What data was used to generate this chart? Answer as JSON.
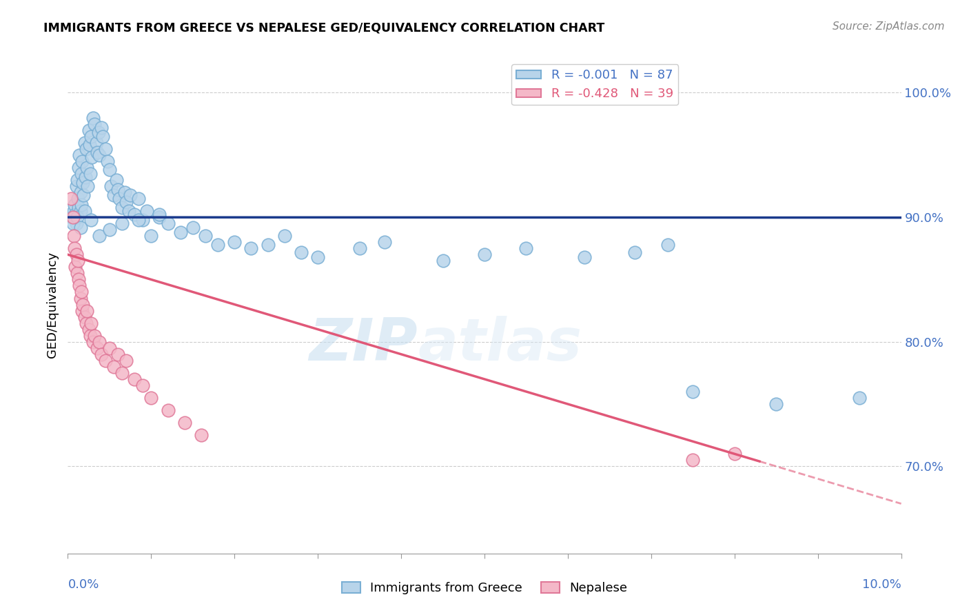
{
  "title": "IMMIGRANTS FROM GREECE VS NEPALESE GED/EQUIVALENCY CORRELATION CHART",
  "source": "Source: ZipAtlas.com",
  "ylabel": "GED/Equivalency",
  "xmin": 0.0,
  "xmax": 10.0,
  "ymin": 63.0,
  "ymax": 103.0,
  "right_yticks": [
    70.0,
    80.0,
    90.0,
    100.0
  ],
  "right_ytick_labels": [
    "70.0%",
    "80.0%",
    "90.0%",
    "100.0%"
  ],
  "blue_R": -0.001,
  "blue_N": 87,
  "pink_R": -0.428,
  "pink_N": 39,
  "blue_line_y_intercept": 90.0,
  "blue_line_slope": -0.003,
  "pink_line_y_intercept": 87.0,
  "pink_line_slope": -2.0,
  "pink_line_solid_end": 8.3,
  "blue_color": "#b8d4ea",
  "blue_edge": "#7aafd4",
  "pink_color": "#f4b8c8",
  "pink_edge": "#e07898",
  "blue_line_color": "#1a3a8c",
  "pink_line_color": "#e05878",
  "watermark_zip": "ZIP",
  "watermark_atlas": "atlas",
  "legend_blue_label": "R = -0.001   N = 87",
  "legend_pink_label": "R = -0.428   N = 39",
  "blue_x": [
    0.05,
    0.07,
    0.08,
    0.09,
    0.1,
    0.1,
    0.11,
    0.12,
    0.13,
    0.13,
    0.14,
    0.15,
    0.15,
    0.16,
    0.16,
    0.17,
    0.18,
    0.19,
    0.2,
    0.21,
    0.22,
    0.23,
    0.24,
    0.25,
    0.26,
    0.27,
    0.28,
    0.29,
    0.3,
    0.32,
    0.34,
    0.35,
    0.37,
    0.38,
    0.4,
    0.42,
    0.45,
    0.48,
    0.5,
    0.52,
    0.55,
    0.58,
    0.6,
    0.62,
    0.65,
    0.68,
    0.7,
    0.73,
    0.75,
    0.8,
    0.85,
    0.9,
    0.95,
    1.0,
    1.1,
    1.2,
    1.35,
    1.5,
    1.65,
    1.8,
    2.0,
    2.2,
    2.4,
    2.6,
    2.8,
    3.0,
    3.5,
    3.8,
    4.5,
    5.0,
    5.5,
    6.2,
    6.8,
    7.2,
    7.5,
    8.5,
    9.5,
    0.06,
    0.11,
    0.15,
    0.2,
    0.28,
    0.38,
    0.5,
    0.65,
    0.85,
    1.1
  ],
  "blue_y": [
    90.0,
    90.5,
    91.0,
    90.2,
    92.5,
    89.5,
    93.0,
    91.5,
    90.8,
    94.0,
    95.0,
    92.0,
    90.5,
    93.5,
    91.0,
    94.5,
    92.8,
    91.8,
    96.0,
    93.2,
    95.5,
    94.0,
    92.5,
    97.0,
    95.8,
    93.5,
    96.5,
    94.8,
    98.0,
    97.5,
    96.0,
    95.2,
    96.8,
    95.0,
    97.2,
    96.5,
    95.5,
    94.5,
    93.8,
    92.5,
    91.8,
    93.0,
    92.2,
    91.5,
    90.8,
    92.0,
    91.2,
    90.5,
    91.8,
    90.2,
    91.5,
    89.8,
    90.5,
    88.5,
    90.0,
    89.5,
    88.8,
    89.2,
    88.5,
    87.8,
    88.0,
    87.5,
    87.8,
    88.5,
    87.2,
    86.8,
    87.5,
    88.0,
    86.5,
    87.0,
    87.5,
    86.8,
    87.2,
    87.8,
    76.0,
    75.0,
    75.5,
    89.5,
    90.0,
    89.2,
    90.5,
    89.8,
    88.5,
    89.0,
    89.5,
    89.8,
    90.2
  ],
  "pink_x": [
    0.04,
    0.06,
    0.07,
    0.08,
    0.09,
    0.1,
    0.11,
    0.12,
    0.13,
    0.14,
    0.15,
    0.16,
    0.17,
    0.18,
    0.2,
    0.22,
    0.23,
    0.25,
    0.27,
    0.28,
    0.3,
    0.32,
    0.35,
    0.38,
    0.4,
    0.45,
    0.5,
    0.55,
    0.6,
    0.65,
    0.7,
    0.8,
    0.9,
    1.0,
    1.2,
    1.4,
    1.6,
    7.5,
    8.0
  ],
  "pink_y": [
    91.5,
    90.0,
    88.5,
    87.5,
    86.0,
    87.0,
    85.5,
    86.5,
    85.0,
    84.5,
    83.5,
    84.0,
    82.5,
    83.0,
    82.0,
    81.5,
    82.5,
    81.0,
    80.5,
    81.5,
    80.0,
    80.5,
    79.5,
    80.0,
    79.0,
    78.5,
    79.5,
    78.0,
    79.0,
    77.5,
    78.5,
    77.0,
    76.5,
    75.5,
    74.5,
    73.5,
    72.5,
    70.5,
    71.0
  ]
}
